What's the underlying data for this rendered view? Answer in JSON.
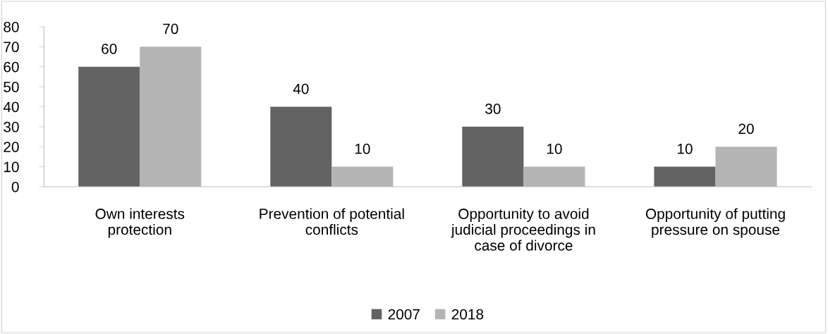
{
  "chart_data": {
    "type": "bar",
    "categories": [
      "Own interests\nprotection",
      "Prevention of potential\nconflicts",
      "Opportunity to avoid\njudicial proceedings in\ncase of divorce",
      "Opportunity of putting\npressure on spouse"
    ],
    "series": [
      {
        "name": "2007",
        "color": "#636363",
        "values": [
          60,
          40,
          30,
          10
        ]
      },
      {
        "name": "2018",
        "color": "#b4b4b4",
        "values": [
          70,
          10,
          10,
          20
        ]
      }
    ],
    "ylim": [
      0,
      80
    ],
    "yticks": [
      0,
      10,
      20,
      30,
      40,
      50,
      60,
      70,
      80
    ],
    "data_labels": true,
    "grid": false,
    "legend": "bottom"
  }
}
